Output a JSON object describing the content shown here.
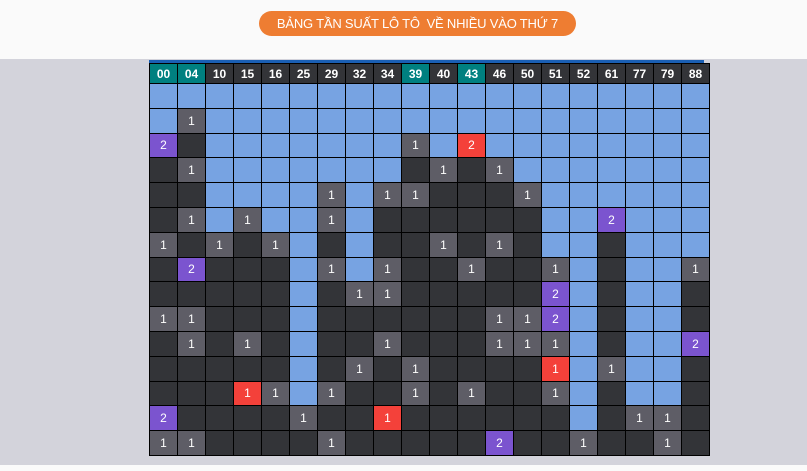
{
  "title": "BẢNG TẦN SUẤT LÔ TÔ  VỀ NHIỀU VÀO THỨ 7",
  "colors": {
    "title_bg": "#ee7d32",
    "highlight_header": "#008080",
    "empty_blue": "#77a3e2",
    "empty_dark": "#333438",
    "count_1": "#5e5d66",
    "count_2": "#7b54cf",
    "red": "#f4413a"
  },
  "columns": [
    "00",
    "04",
    "10",
    "15",
    "16",
    "25",
    "29",
    "32",
    "34",
    "39",
    "40",
    "43",
    "46",
    "50",
    "51",
    "52",
    "61",
    "77",
    "79",
    "88"
  ],
  "highlighted_columns": [
    "00",
    "04",
    "39",
    "43"
  ],
  "legend_codes": {
    "b": "blue empty",
    "d": "dark empty",
    "1": "count 1",
    "2": "count 2",
    "r1": "red count 1",
    "r2": "red count 2"
  },
  "rows": [
    [
      "b",
      "b",
      "b",
      "b",
      "b",
      "b",
      "b",
      "b",
      "b",
      "b",
      "b",
      "b",
      "b",
      "b",
      "b",
      "b",
      "b",
      "b",
      "b",
      "b"
    ],
    [
      "b",
      "1",
      "b",
      "b",
      "b",
      "b",
      "b",
      "b",
      "b",
      "b",
      "b",
      "b",
      "b",
      "b",
      "b",
      "b",
      "b",
      "b",
      "b",
      "b"
    ],
    [
      "2",
      "d",
      "b",
      "b",
      "b",
      "b",
      "b",
      "b",
      "b",
      "1",
      "b",
      "r2",
      "b",
      "b",
      "b",
      "b",
      "b",
      "b",
      "b",
      "b"
    ],
    [
      "d",
      "1",
      "b",
      "b",
      "b",
      "b",
      "b",
      "b",
      "b",
      "d",
      "1",
      "d",
      "1",
      "b",
      "b",
      "b",
      "b",
      "b",
      "b",
      "b"
    ],
    [
      "d",
      "d",
      "b",
      "b",
      "b",
      "b",
      "1",
      "b",
      "1",
      "1",
      "d",
      "d",
      "d",
      "1",
      "b",
      "b",
      "b",
      "b",
      "b",
      "b"
    ],
    [
      "d",
      "1",
      "b",
      "1",
      "b",
      "b",
      "1",
      "b",
      "d",
      "d",
      "d",
      "d",
      "d",
      "d",
      "b",
      "b",
      "2",
      "b",
      "b",
      "b"
    ],
    [
      "1",
      "d",
      "1",
      "d",
      "1",
      "b",
      "d",
      "b",
      "d",
      "d",
      "1",
      "d",
      "1",
      "d",
      "b",
      "b",
      "d",
      "b",
      "b",
      "b"
    ],
    [
      "d",
      "2",
      "d",
      "d",
      "d",
      "b",
      "1",
      "b",
      "1",
      "d",
      "d",
      "1",
      "d",
      "d",
      "1",
      "b",
      "d",
      "b",
      "b",
      "1"
    ],
    [
      "d",
      "d",
      "d",
      "d",
      "d",
      "b",
      "d",
      "1",
      "1",
      "d",
      "d",
      "d",
      "d",
      "d",
      "2",
      "b",
      "d",
      "b",
      "b",
      "d"
    ],
    [
      "1",
      "1",
      "d",
      "d",
      "d",
      "b",
      "d",
      "d",
      "d",
      "d",
      "d",
      "d",
      "1",
      "1",
      "2",
      "b",
      "d",
      "b",
      "b",
      "d"
    ],
    [
      "d",
      "1",
      "d",
      "1",
      "d",
      "b",
      "d",
      "d",
      "1",
      "d",
      "d",
      "d",
      "1",
      "1",
      "1",
      "b",
      "d",
      "b",
      "b",
      "2"
    ],
    [
      "d",
      "d",
      "d",
      "d",
      "d",
      "b",
      "d",
      "1",
      "d",
      "1",
      "d",
      "d",
      "d",
      "d",
      "r1",
      "b",
      "1",
      "b",
      "b",
      "d"
    ],
    [
      "d",
      "d",
      "d",
      "r1",
      "1",
      "b",
      "1",
      "d",
      "d",
      "1",
      "d",
      "1",
      "d",
      "d",
      "1",
      "b",
      "d",
      "b",
      "b",
      "d"
    ],
    [
      "2",
      "d",
      "d",
      "d",
      "d",
      "1",
      "d",
      "d",
      "r1",
      "d",
      "d",
      "d",
      "d",
      "d",
      "d",
      "b",
      "d",
      "1",
      "1",
      "d"
    ],
    [
      "1",
      "1",
      "d",
      "d",
      "d",
      "d",
      "1",
      "d",
      "d",
      "d",
      "d",
      "d",
      "2",
      "d",
      "d",
      "1",
      "d",
      "d",
      "1",
      "d"
    ]
  ]
}
